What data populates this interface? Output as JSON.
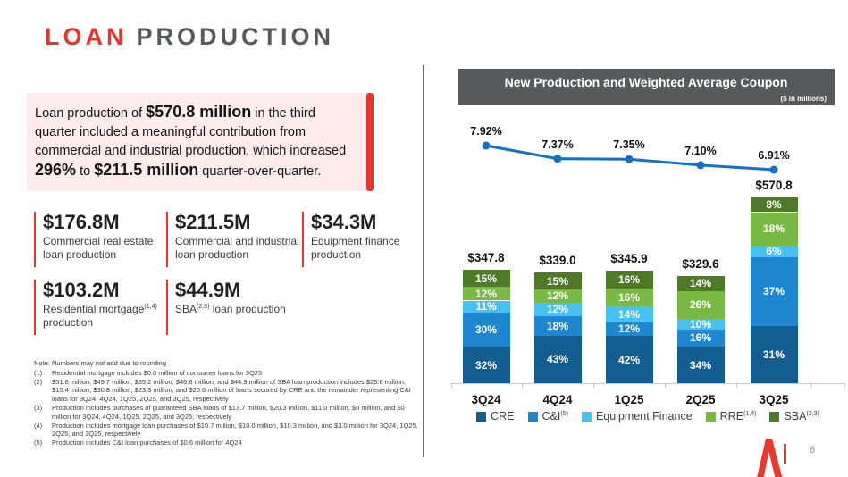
{
  "slide": {
    "page_number": "6"
  },
  "title": {
    "accent": "LOAN",
    "rest": "PRODUCTION"
  },
  "highlight": {
    "segments": [
      {
        "t": "Loan production of "
      },
      {
        "t": "$570.8 million",
        "b": true
      },
      {
        "t": " in the third quarter included a meaningful contribution from commercial and industrial production, which increased "
      },
      {
        "t": "296%",
        "b": true
      },
      {
        "t": " to "
      },
      {
        "t": "$211.5 million",
        "b": true
      },
      {
        "t": " quarter-over-quarter."
      }
    ]
  },
  "metrics": [
    {
      "value": "$176.8M",
      "label_parts": [
        {
          "t": "Commercial real estate loan production"
        }
      ]
    },
    {
      "value": "$211.5M",
      "label_parts": [
        {
          "t": "Commercial and industrial loan production"
        }
      ]
    },
    {
      "value": "$34.3M",
      "label_parts": [
        {
          "t": "Equipment finance production"
        }
      ]
    },
    {
      "value": "$103.2M",
      "label_parts": [
        {
          "t": "Residential mortgage"
        },
        {
          "t": "(1,4)",
          "sup": true
        },
        {
          "t": " production"
        }
      ]
    },
    {
      "value": "$44.9M",
      "label_parts": [
        {
          "t": "SBA"
        },
        {
          "t": "(2,3)",
          "sup": true
        },
        {
          "t": " loan production"
        }
      ]
    }
  ],
  "footnotes": {
    "note": "Note: Numbers may not add due to rounding",
    "items": [
      {
        "num": "(1)",
        "text": "Residential mortgage includes $0.0 million of consumer loans for 3Q25"
      },
      {
        "num": "(2)",
        "text": "$51.6 million, $49.7 million, $55.2 million, $46.8 million, and $44.9 million of SBA loan production includes $25.6 million, $15.4 million, $30.8 million, $23.3 million, and $20.6 million of loans secured by CRE and the remainder representing C&I loans for 3Q24, 4Q24, 1Q25, 2Q25, and 3Q25, respectively"
      },
      {
        "num": "(3)",
        "text": "Production includes purchases of guaranteed SBA loans of $13.7 million, $20.3 million, $11.0 million, $0 million, and $0 million for 3Q24, 4Q24, 1Q25, 2Q25, and 3Q25, respectively"
      },
      {
        "num": "(4)",
        "text": "Production includes mortgage loan purchases of $10.7 million, $10.0 million, $10.3 million, and $3.0 million for 3Q24, 1Q25, 2Q25, and 3Q25, respectively"
      },
      {
        "num": "(5)",
        "text": "Production includes C&I loan purchases of $0.6 million for 4Q24"
      }
    ]
  },
  "chart_data": {
    "type": "bar",
    "title": "New Production and Weighted Average Coupon",
    "subtitle": "($ in millions)",
    "categories": [
      "3Q24",
      "4Q24",
      "1Q25",
      "2Q25",
      "3Q25"
    ],
    "totals": [
      347.8,
      339.0,
      345.9,
      329.6,
      570.8
    ],
    "total_labels": [
      "$347.8",
      "$339.0",
      "$345.9",
      "$329.6",
      "$570.8"
    ],
    "stack_order": "bottom-to-top",
    "series": [
      {
        "name": "CRE",
        "sup": "",
        "color": "#135e90",
        "values_pct": [
          32,
          43,
          42,
          34,
          31
        ]
      },
      {
        "name": "C&I",
        "sup": "(5)",
        "color": "#1e87d0",
        "values_pct": [
          30,
          18,
          12,
          16,
          37
        ]
      },
      {
        "name": "Equipment Finance",
        "sup": "",
        "color": "#47c1f2",
        "values_pct": [
          11,
          12,
          14,
          10,
          6
        ]
      },
      {
        "name": "RRE",
        "sup": "(1,4)",
        "color": "#7ab944",
        "values_pct": [
          12,
          12,
          16,
          26,
          18
        ]
      },
      {
        "name": "SBA",
        "sup": "(2,3)",
        "color": "#4e7a28",
        "values_pct": [
          15,
          15,
          16,
          14,
          8
        ]
      }
    ],
    "line": {
      "name": "Weighted Average Coupon",
      "color": "#1470c8",
      "values": [
        7.92,
        7.37,
        7.35,
        7.1,
        6.91
      ],
      "labels": [
        "7.92%",
        "7.37%",
        "7.35%",
        "7.10%",
        "6.91%"
      ]
    },
    "legend_position": "bottom",
    "grid": false
  },
  "colors": {
    "accent_red": "#e8352b",
    "pink_bg": "#fdeceb",
    "header_gray": "#58595b",
    "page_num_gray": "#8a8a8a"
  }
}
